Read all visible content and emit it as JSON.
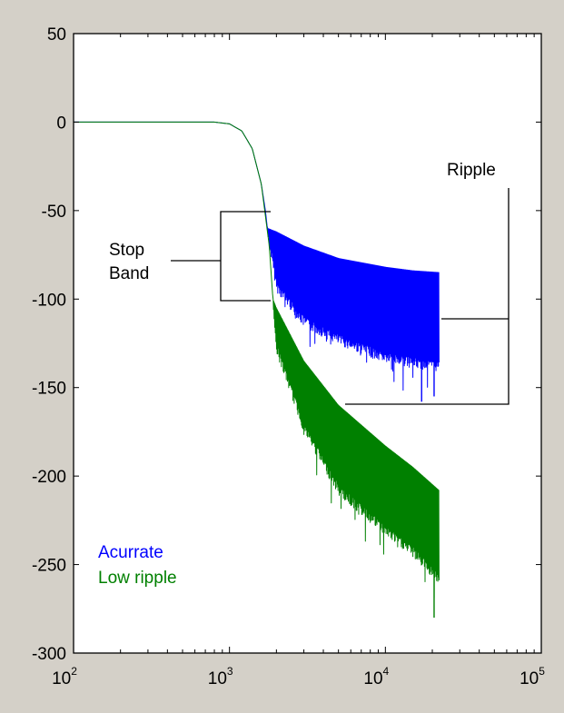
{
  "chart_data": {
    "type": "line",
    "title": "",
    "xlabel": "",
    "ylabel": "",
    "x_scale": "log",
    "xlim": [
      100,
      100000
    ],
    "ylim": [
      -300,
      50
    ],
    "x_ticks": [
      {
        "base": "10",
        "exp": "2"
      },
      {
        "base": "10",
        "exp": "3"
      },
      {
        "base": "10",
        "exp": "4"
      },
      {
        "base": "10",
        "exp": "5"
      }
    ],
    "y_ticks": [
      "50",
      "0",
      "-50",
      "-100",
      "-150",
      "-200",
      "-250",
      "-300"
    ],
    "grid": false,
    "legend_placement": "lower-left",
    "series": [
      {
        "name": "Acurrate",
        "color": "#0000ff",
        "x": [
          100,
          500,
          800,
          1000,
          1200,
          1400,
          1600,
          1700,
          1750,
          2000,
          3000,
          5000,
          10000,
          15000,
          22000
        ],
        "y_upper": [
          0,
          0,
          0,
          -1,
          -5,
          -15,
          -35,
          -50,
          -60,
          -62,
          -70,
          -77,
          -82,
          -84,
          -85
        ],
        "y_lower": [
          0,
          0,
          0,
          -1,
          -5,
          -15,
          -35,
          -50,
          -60,
          -90,
          -110,
          -120,
          -130,
          -133,
          -135
        ],
        "y_spikes_min": [
          -155,
          -158
        ]
      },
      {
        "name": "Low ripple",
        "color": "#008000",
        "x": [
          100,
          500,
          800,
          1000,
          1200,
          1400,
          1600,
          1800,
          1900,
          2000,
          3000,
          5000,
          10000,
          15000,
          22000
        ],
        "y_upper": [
          0,
          0,
          0,
          -1,
          -5,
          -15,
          -35,
          -70,
          -100,
          -105,
          -135,
          -160,
          -183,
          -195,
          -208
        ],
        "y_lower": [
          0,
          0,
          0,
          -1,
          -5,
          -15,
          -35,
          -70,
          -100,
          -125,
          -170,
          -205,
          -228,
          -240,
          -255
        ],
        "y_spikes_min": [
          -280
        ]
      }
    ],
    "annotations": [
      {
        "lines": [
          "Stop",
          "Band"
        ]
      },
      {
        "lines": [
          "Ripple"
        ]
      }
    ]
  }
}
